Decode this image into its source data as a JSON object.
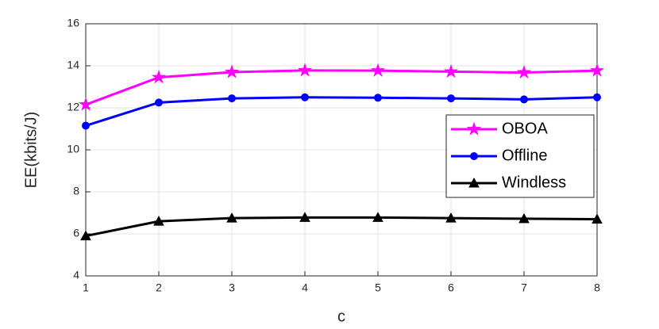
{
  "chart_data": {
    "type": "line",
    "x_label": "c",
    "y_label": "EE(kbits/J)",
    "x": [
      1,
      2,
      3,
      4,
      5,
      6,
      7,
      8
    ],
    "xlim": [
      1,
      8
    ],
    "xticks": [
      1,
      2,
      3,
      4,
      5,
      6,
      7,
      8
    ],
    "ylim": [
      4,
      16
    ],
    "yticks": [
      4,
      6,
      8,
      10,
      12,
      14,
      16
    ],
    "grid": true,
    "legend": "right",
    "series": [
      {
        "name": "OBOA",
        "color": "#ff00ff",
        "marker": "star",
        "values": [
          12.15,
          13.45,
          13.7,
          13.78,
          13.77,
          13.72,
          13.68,
          13.77
        ]
      },
      {
        "name": "Offline",
        "color": "#0000ff",
        "marker": "circle",
        "values": [
          11.15,
          12.25,
          12.45,
          12.5,
          12.48,
          12.45,
          12.4,
          12.5
        ]
      },
      {
        "name": "Windless",
        "color": "#000000",
        "marker": "triangle",
        "values": [
          5.9,
          6.6,
          6.75,
          6.78,
          6.78,
          6.75,
          6.72,
          6.7
        ]
      }
    ]
  }
}
